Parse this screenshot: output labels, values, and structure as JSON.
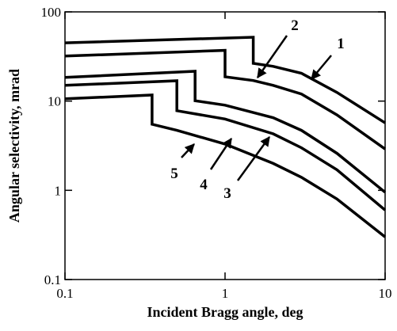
{
  "chart_data": {
    "type": "line",
    "xlabel": "Incident Bragg angle, deg",
    "ylabel": "Angular selectivity, mrad",
    "xscale": "log",
    "yscale": "log",
    "xlim": [
      0.1,
      10
    ],
    "ylim": [
      0.1,
      100
    ],
    "xticks": [
      0.1,
      1,
      10
    ],
    "yticks": [
      0.1,
      1,
      10,
      100
    ],
    "series": [
      {
        "name": "1",
        "color": "#000000",
        "x": [
          0.1,
          1.5,
          1.5,
          2,
          3,
          5,
          10
        ],
        "values": [
          45,
          52,
          26.5,
          24.5,
          20.5,
          12.5,
          5.7
        ]
      },
      {
        "name": "2",
        "color": "#000000",
        "x": [
          0.1,
          1,
          1,
          1.5,
          2,
          3,
          5,
          10
        ],
        "values": [
          32,
          37,
          18.7,
          17,
          15,
          12,
          7,
          2.9
        ]
      },
      {
        "name": "3",
        "color": "#000000",
        "x": [
          0.1,
          0.65,
          0.65,
          1,
          2,
          3,
          5,
          10
        ],
        "values": [
          18.4,
          21.6,
          10.1,
          9,
          6.5,
          4.7,
          2.6,
          0.95
        ]
      },
      {
        "name": "4",
        "color": "#000000",
        "x": [
          0.1,
          0.5,
          0.5,
          1,
          2,
          3,
          5,
          10
        ],
        "values": [
          15,
          16.9,
          7.8,
          6.3,
          4.3,
          3,
          1.7,
          0.6
        ]
      },
      {
        "name": "5",
        "color": "#000000",
        "x": [
          0.1,
          0.35,
          0.35,
          0.5,
          1,
          2,
          3,
          5,
          10
        ],
        "values": [
          10.6,
          11.7,
          5.5,
          4.7,
          3.3,
          2,
          1.4,
          0.8,
          0.3
        ]
      }
    ]
  }
}
